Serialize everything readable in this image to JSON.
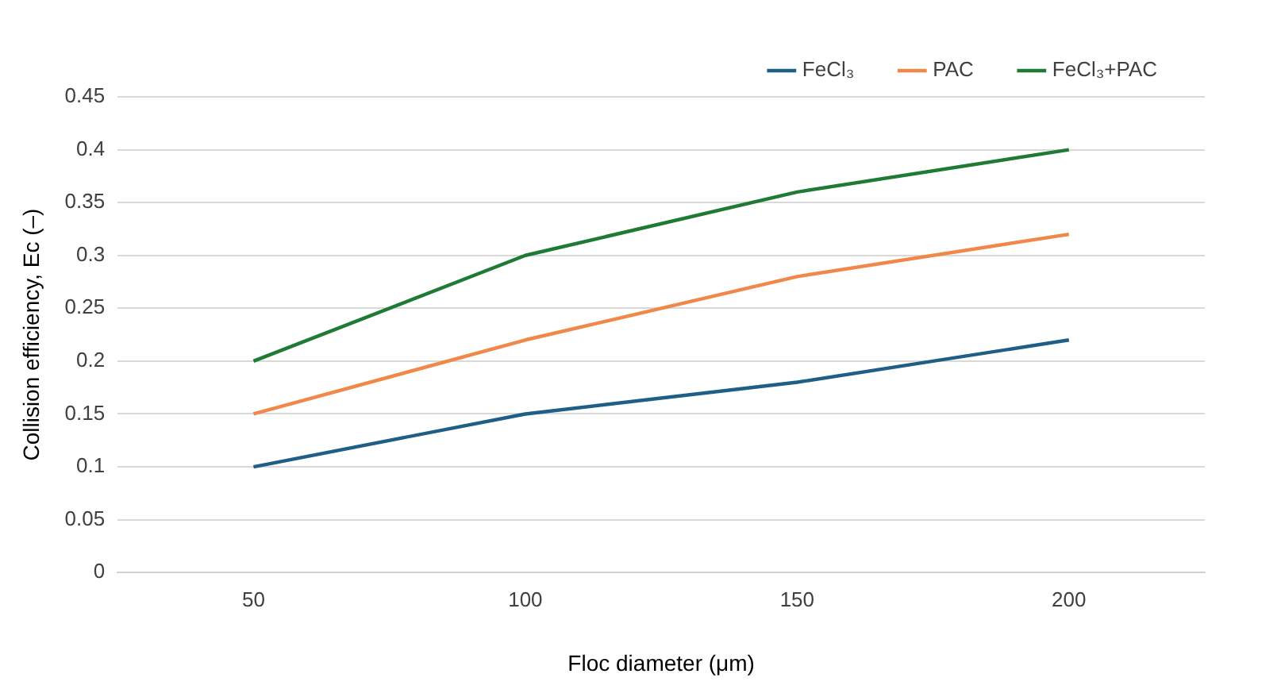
{
  "chart_data": {
    "type": "line",
    "xlabel": "Floc diameter (μm)",
    "ylabel": "Collision efficiency, Ec (–)",
    "categories": [
      "50",
      "100",
      "150",
      "200"
    ],
    "series": [
      {
        "name": "FeCl₃",
        "color": "#1f5f86",
        "values": [
          0.1,
          0.15,
          0.18,
          0.22
        ]
      },
      {
        "name": "PAC",
        "color": "#f0884a",
        "values": [
          0.15,
          0.22,
          0.28,
          0.32
        ]
      },
      {
        "name": "FeCl₃+PAC",
        "color": "#1e7a34",
        "values": [
          0.2,
          0.3,
          0.36,
          0.4
        ]
      }
    ],
    "ylim": [
      0,
      0.45
    ],
    "yticks": [
      0,
      0.05,
      0.1,
      0.15,
      0.2,
      0.25,
      0.3,
      0.35,
      0.4,
      0.45
    ],
    "grid": "y",
    "legend": "top right",
    "marker": "none",
    "line_style": "solid"
  }
}
